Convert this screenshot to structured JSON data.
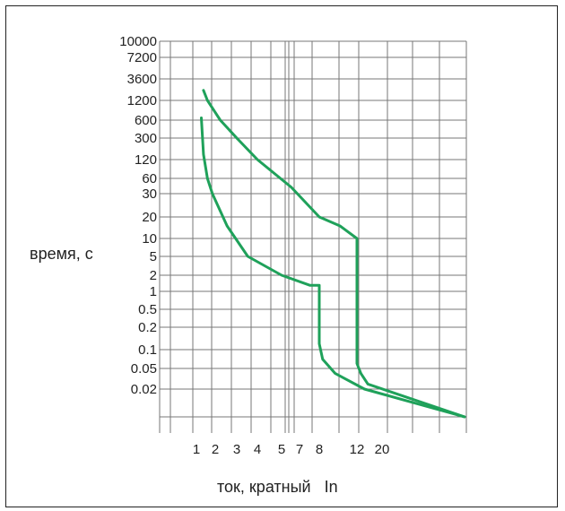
{
  "chart_data": {
    "type": "line",
    "xlabel": "ток, кратный   In",
    "ylabel": "время, с",
    "x_ticks": [
      "1",
      "2",
      "3",
      "4",
      "5",
      "7",
      "8",
      "12",
      "20"
    ],
    "y_ticks": [
      "10000",
      "7200",
      "3600",
      "1200",
      "600",
      "300",
      "120",
      "60",
      "30",
      "20",
      "10",
      "5",
      "2",
      "1",
      "0.5",
      "0.2",
      "0.1",
      "0.05",
      "0.02"
    ],
    "grid": true,
    "legend": "none",
    "line_color": "#1fa15a",
    "series": [
      {
        "points": [
          [
            1.2,
            650
          ],
          [
            1.3,
            150
          ],
          [
            1.5,
            60
          ],
          [
            1.8,
            30
          ],
          [
            2.5,
            15
          ],
          [
            3.5,
            5
          ],
          [
            5,
            2
          ],
          [
            7.5,
            1.3
          ],
          [
            8,
            1.3
          ],
          [
            8,
            0.12
          ],
          [
            8.3,
            0.07
          ],
          [
            9.5,
            0.04
          ],
          [
            14,
            0.02
          ],
          [
            50,
            0.01
          ]
        ]
      },
      {
        "points": [
          [
            1.3,
            2000
          ],
          [
            1.5,
            1200
          ],
          [
            2.2,
            600
          ],
          [
            3,
            300
          ],
          [
            4,
            120
          ],
          [
            6,
            40
          ],
          [
            8,
            20
          ],
          [
            10,
            15
          ],
          [
            12,
            10
          ],
          [
            12,
            0.06
          ],
          [
            13,
            0.04
          ],
          [
            15,
            0.025
          ],
          [
            50,
            0.01
          ]
        ]
      }
    ]
  }
}
